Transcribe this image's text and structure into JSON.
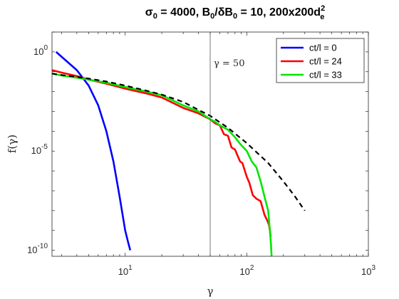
{
  "chart_data": {
    "type": "line",
    "title_main": "σ",
    "title_sub0": "0",
    "title_mid": " = 4000, B",
    "title_sub1": "0",
    "title_mid2": "/δB",
    "title_sub2": "0",
    "title_end": " = 10, 200x200d",
    "title_sup": "2",
    "title_sub3": "e",
    "xlabel": "γ",
    "ylabel": "f(γ)",
    "xscale": "log",
    "yscale": "log",
    "xlim": [
      2.5,
      1000
    ],
    "ylim": [
      5e-11,
      10
    ],
    "x_ticks": [
      {
        "value": 10,
        "base": "10",
        "exp": "1"
      },
      {
        "value": 100,
        "base": "10",
        "exp": "2"
      },
      {
        "value": 1000,
        "base": "10",
        "exp": "3"
      }
    ],
    "y_ticks": [
      {
        "value": 1e-10,
        "base": "10",
        "exp": "-10"
      },
      {
        "value": 1e-05,
        "base": "10",
        "exp": "-5"
      },
      {
        "value": 1,
        "base": "10",
        "exp": "0"
      }
    ],
    "legend_position": "top-right",
    "annotation": {
      "text": "γ = 50",
      "x": 50
    },
    "series": [
      {
        "name": "ct/l = 0",
        "color": "#0000ff",
        "style": "solid",
        "points": [
          [
            2.7,
            1.0
          ],
          [
            3.2,
            0.4
          ],
          [
            4.0,
            0.12
          ],
          [
            5.0,
            0.02
          ],
          [
            6.0,
            0.002
          ],
          [
            7.0,
            0.0001
          ],
          [
            8.0,
            3e-06
          ],
          [
            9.0,
            5e-08
          ],
          [
            10.0,
            1e-09
          ],
          [
            10.5,
            3e-10
          ],
          [
            11.0,
            1e-10
          ]
        ]
      },
      {
        "name": "ct/l = 24",
        "color": "#ff0000",
        "style": "solid",
        "points": [
          [
            2.5,
            0.12
          ],
          [
            3.0,
            0.09
          ],
          [
            4.0,
            0.06
          ],
          [
            5.0,
            0.04
          ],
          [
            7.0,
            0.025
          ],
          [
            10.0,
            0.014
          ],
          [
            15.0,
            0.008
          ],
          [
            20.0,
            0.005
          ],
          [
            30.0,
            0.0015
          ],
          [
            40.0,
            0.0008
          ],
          [
            50.0,
            0.0004
          ],
          [
            55.0,
            0.00025
          ],
          [
            60.0,
            0.0002
          ],
          [
            65.0,
            7e-05
          ],
          [
            70.0,
            6e-05
          ],
          [
            75.0,
            1.5e-05
          ],
          [
            80.0,
            1.2e-05
          ],
          [
            88.0,
            3e-06
          ],
          [
            92.0,
            2.5e-06
          ],
          [
            100.0,
            5e-07
          ],
          [
            105.0,
            2.5e-07
          ],
          [
            112.0,
            6e-08
          ],
          [
            120.0,
            4e-08
          ],
          [
            130.0,
            3e-08
          ],
          [
            140.0,
            6e-09
          ],
          [
            148.0,
            3e-09
          ],
          [
            152.0,
            2e-09
          ],
          [
            155.0,
            1e-09
          ],
          [
            157.0,
            5e-10
          ]
        ]
      },
      {
        "name": "ct/l = 33",
        "color": "#00e600",
        "style": "solid",
        "points": [
          [
            2.5,
            0.08
          ],
          [
            3.0,
            0.065
          ],
          [
            4.0,
            0.05
          ],
          [
            5.0,
            0.04
          ],
          [
            7.0,
            0.028
          ],
          [
            10.0,
            0.017
          ],
          [
            15.0,
            0.01
          ],
          [
            20.0,
            0.0065
          ],
          [
            30.0,
            0.002
          ],
          [
            40.0,
            0.001
          ],
          [
            50.0,
            0.0004
          ],
          [
            55.0,
            0.0003
          ],
          [
            60.0,
            0.0002
          ],
          [
            70.0,
            0.00012
          ],
          [
            80.0,
            5e-05
          ],
          [
            90.0,
            2e-05
          ],
          [
            100.0,
            1e-05
          ],
          [
            110.0,
            3e-06
          ],
          [
            120.0,
            1.5e-06
          ],
          [
            130.0,
            3e-07
          ],
          [
            140.0,
            5e-08
          ],
          [
            150.0,
            1e-08
          ],
          [
            155.0,
            1e-09
          ],
          [
            158.0,
            2e-10
          ],
          [
            160.0,
            5e-11
          ]
        ]
      },
      {
        "name": "",
        "color": "#000000",
        "style": "dashed",
        "points": [
          [
            2.5,
            0.08
          ],
          [
            3.0,
            0.068
          ],
          [
            4.0,
            0.055
          ],
          [
            5.0,
            0.045
          ],
          [
            7.0,
            0.032
          ],
          [
            10.0,
            0.02
          ],
          [
            15.0,
            0.011
          ],
          [
            20.0,
            0.007
          ],
          [
            30.0,
            0.003
          ],
          [
            40.0,
            0.0012
          ],
          [
            50.0,
            0.0006
          ],
          [
            70.0,
            0.00015
          ],
          [
            100.0,
            2.5e-05
          ],
          [
            150.0,
            2.5e-06
          ],
          [
            200.0,
            3e-07
          ],
          [
            250.0,
            5e-08
          ],
          [
            300.0,
            1e-08
          ]
        ]
      }
    ]
  }
}
